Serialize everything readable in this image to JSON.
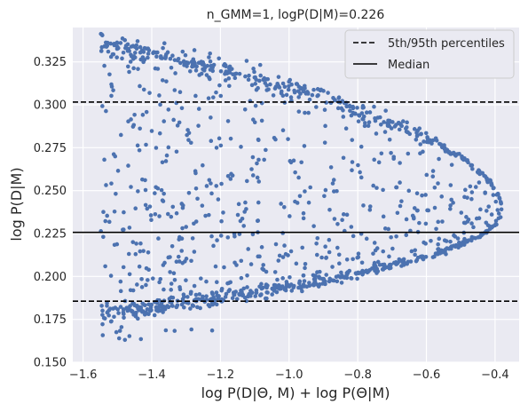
{
  "chart_data": {
    "type": "scatter",
    "title": "n_GMM=1, logP(D|M)=0.226",
    "xlabel": "log P(D|Θ, M) + log P(Θ|M)",
    "ylabel": "log P(D|M)",
    "xlim": [
      -1.63,
      -0.33
    ],
    "ylim": [
      0.15,
      0.345
    ],
    "xticks": [
      -1.6,
      -1.4,
      -1.2,
      -1.0,
      -0.8,
      -0.6,
      -0.4
    ],
    "xtick_labels": [
      "−1.6",
      "−1.4",
      "−1.2",
      "−1.0",
      "−0.8",
      "−0.6",
      "−0.4"
    ],
    "yticks": [
      0.15,
      0.175,
      0.2,
      0.225,
      0.25,
      0.275,
      0.3,
      0.325
    ],
    "ytick_labels": [
      "0.150",
      "0.175",
      "0.200",
      "0.225",
      "0.250",
      "0.275",
      "0.300",
      "0.325"
    ],
    "grid": true,
    "legend_position": "top-right",
    "hlines": [
      {
        "name": "5th/95th percentiles",
        "y": 0.3016,
        "style": "dashed"
      },
      {
        "name": "5th/95th percentiles",
        "y": 0.1856,
        "style": "dashed"
      },
      {
        "name": "Median",
        "y": 0.2257,
        "style": "solid"
      }
    ],
    "legend": [
      {
        "label": "5th/95th percentiles",
        "style": "dashed"
      },
      {
        "label": "Median",
        "style": "solid"
      }
    ],
    "envelope": {
      "apex": {
        "x": -0.38,
        "y": 0.238
      },
      "upper_left": {
        "x": -1.55,
        "y": 0.34
      },
      "lower_left": {
        "x": -1.55,
        "y": 0.175
      }
    },
    "point_count": 1200,
    "colors": {
      "points": "#4c72b0",
      "lines": "#000000",
      "background": "#eaeaf2",
      "grid": "#ffffff",
      "text": "#262626"
    }
  }
}
